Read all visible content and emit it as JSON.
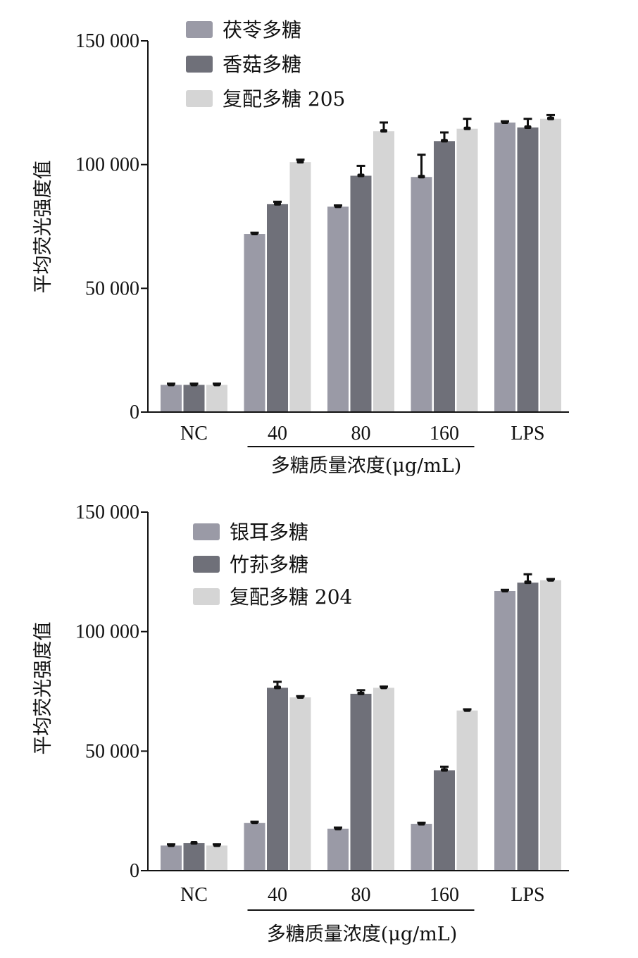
{
  "colors": {
    "series1": "#9a9aa6",
    "series2": "#6f7079",
    "series3": "#d5d5d5",
    "axis": "#111111",
    "error_bar": "#111111"
  },
  "chart_data": [
    {
      "type": "bar",
      "ylabel": "平均荧光强度值",
      "xlabel": "多糖质量浓度(μg/mL)",
      "categories": [
        "NC",
        "40",
        "80",
        "160",
        "LPS"
      ],
      "ylim": [
        0,
        150000
      ],
      "yticks": [
        "0",
        "50 000",
        "100 000",
        "150 000"
      ],
      "ytick_values": [
        0,
        50000,
        100000,
        150000
      ],
      "legend_position": "top-left",
      "grid": false,
      "series": [
        {
          "name": "茯苓多糖",
          "values": [
            11000,
            72000,
            83000,
            95000,
            117000
          ],
          "errors": [
            500,
            500,
            500,
            9000,
            500
          ]
        },
        {
          "name": "香菇多糖",
          "values": [
            11000,
            84000,
            95500,
            109500,
            115000
          ],
          "errors": [
            500,
            1000,
            4000,
            3500,
            3500
          ]
        },
        {
          "name": "复配多糖 205",
          "values": [
            11000,
            101000,
            113500,
            114500,
            118500
          ],
          "errors": [
            500,
            1000,
            3500,
            4000,
            1500
          ]
        }
      ]
    },
    {
      "type": "bar",
      "ylabel": "平均荧光强度值",
      "xlabel": "多糖质量浓度(μg/mL)",
      "categories": [
        "NC",
        "40",
        "80",
        "160",
        "LPS"
      ],
      "ylim": [
        0,
        150000
      ],
      "yticks": [
        "0",
        "50 000",
        "100 000",
        "150 000"
      ],
      "ytick_values": [
        0,
        50000,
        100000,
        150000
      ],
      "legend_position": "top-left",
      "grid": false,
      "series": [
        {
          "name": "银耳多糖",
          "values": [
            10500,
            20000,
            17500,
            19500,
            117000
          ],
          "errors": [
            500,
            500,
            500,
            500,
            500
          ]
        },
        {
          "name": "竹荪多糖",
          "values": [
            11500,
            76500,
            74000,
            42000,
            120500
          ],
          "errors": [
            0,
            2500,
            1500,
            1500,
            3500
          ]
        },
        {
          "name": "复配多糖 204",
          "values": [
            10500,
            72500,
            76500,
            67000,
            121500
          ],
          "errors": [
            500,
            500,
            500,
            500,
            500
          ]
        }
      ]
    }
  ]
}
